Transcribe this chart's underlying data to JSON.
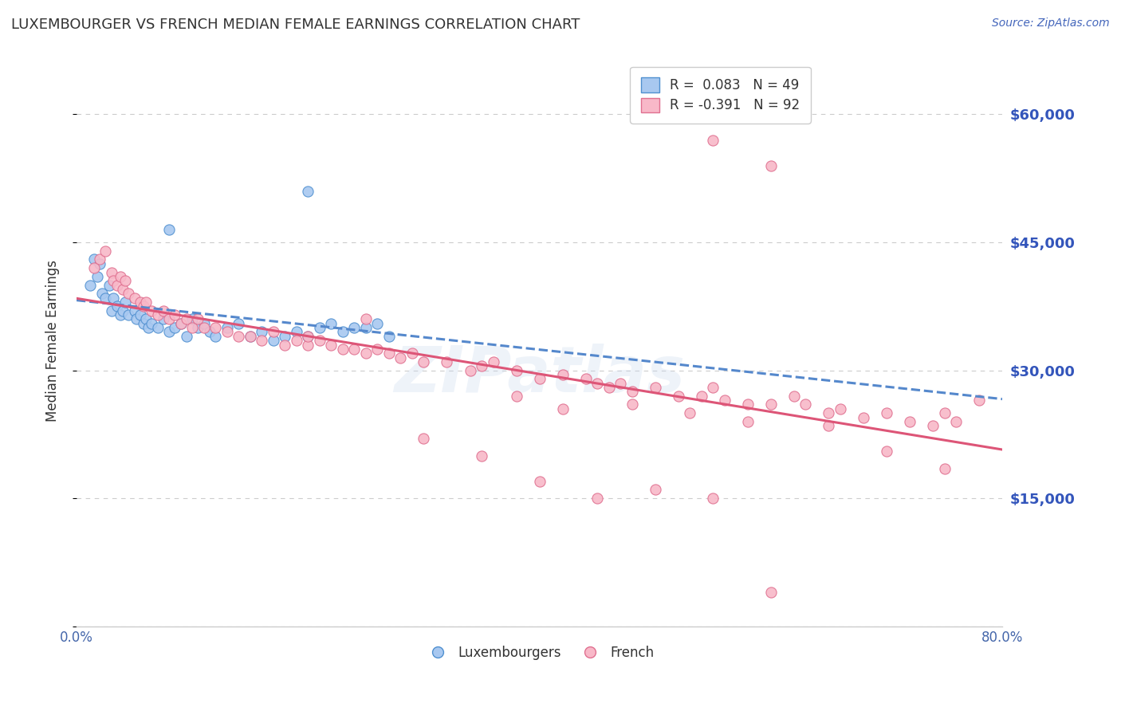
{
  "title": "LUXEMBOURGER VS FRENCH MEDIAN FEMALE EARNINGS CORRELATION CHART",
  "source": "Source: ZipAtlas.com",
  "ylabel": "Median Female Earnings",
  "xlim": [
    0.0,
    80.0
  ],
  "ylim": [
    0,
    67000
  ],
  "yticks": [
    0,
    15000,
    30000,
    45000,
    60000
  ],
  "ytick_labels": [
    "",
    "$15,000",
    "$30,000",
    "$45,000",
    "$60,000"
  ],
  "blue_R": 0.083,
  "blue_N": 49,
  "pink_R": -0.391,
  "pink_N": 92,
  "blue_color": "#a8c8f0",
  "pink_color": "#f8b8c8",
  "blue_edge": "#5090d0",
  "pink_edge": "#e07090",
  "trend_blue_color": "#5588cc",
  "trend_pink_color": "#dd5577",
  "watermark": "ZIPatlas",
  "legend_blue_label": "Luxembourgers",
  "legend_pink_label": "French",
  "blue_x": [
    1.2,
    1.5,
    1.8,
    2.0,
    2.2,
    2.5,
    2.8,
    3.0,
    3.2,
    3.5,
    3.8,
    4.0,
    4.2,
    4.5,
    5.0,
    5.2,
    5.5,
    5.8,
    6.0,
    6.2,
    6.5,
    7.0,
    7.5,
    8.0,
    8.5,
    9.0,
    9.5,
    10.0,
    10.5,
    11.0,
    11.5,
    12.0,
    13.0,
    14.0,
    15.0,
    16.0,
    17.0,
    18.0,
    19.0,
    20.0,
    21.0,
    22.0,
    23.0,
    24.0,
    25.0,
    26.0,
    27.0,
    20.0,
    8.0
  ],
  "blue_y": [
    40000,
    43000,
    41000,
    42500,
    39000,
    38500,
    40000,
    37000,
    38500,
    37500,
    36500,
    37000,
    38000,
    36500,
    37000,
    36000,
    36500,
    35500,
    36000,
    35000,
    35500,
    35000,
    36000,
    34500,
    35000,
    35500,
    34000,
    36000,
    35000,
    35500,
    34500,
    34000,
    35000,
    35500,
    34000,
    34500,
    33500,
    34000,
    34500,
    34000,
    35000,
    35500,
    34500,
    35000,
    35000,
    35500,
    34000,
    51000,
    46500
  ],
  "pink_x": [
    1.5,
    2.0,
    2.5,
    3.0,
    3.2,
    3.5,
    3.8,
    4.0,
    4.2,
    4.5,
    5.0,
    5.5,
    5.8,
    6.0,
    6.5,
    7.0,
    7.5,
    8.0,
    8.5,
    9.0,
    9.5,
    10.0,
    10.5,
    11.0,
    12.0,
    13.0,
    14.0,
    15.0,
    16.0,
    17.0,
    18.0,
    19.0,
    20.0,
    21.0,
    22.0,
    23.0,
    24.0,
    25.0,
    26.0,
    27.0,
    28.0,
    29.0,
    30.0,
    32.0,
    34.0,
    35.0,
    36.0,
    38.0,
    40.0,
    42.0,
    44.0,
    45.0,
    46.0,
    47.0,
    48.0,
    50.0,
    52.0,
    54.0,
    55.0,
    56.0,
    58.0,
    60.0,
    62.0,
    63.0,
    65.0,
    66.0,
    68.0,
    70.0,
    72.0,
    74.0,
    75.0,
    76.0,
    78.0,
    30.0,
    35.0,
    40.0,
    45.0,
    50.0,
    55.0,
    60.0,
    65.0,
    70.0,
    75.0,
    20.0,
    25.0,
    55.0,
    60.0,
    42.0,
    38.0,
    48.0,
    53.0,
    58.0
  ],
  "pink_y": [
    42000,
    43000,
    44000,
    41500,
    40500,
    40000,
    41000,
    39500,
    40500,
    39000,
    38500,
    38000,
    37500,
    38000,
    37000,
    36500,
    37000,
    36000,
    36500,
    35500,
    36000,
    35000,
    36000,
    35000,
    35000,
    34500,
    34000,
    34000,
    33500,
    34500,
    33000,
    33500,
    33000,
    33500,
    33000,
    32500,
    32500,
    32000,
    32500,
    32000,
    31500,
    32000,
    31000,
    31000,
    30000,
    30500,
    31000,
    30000,
    29000,
    29500,
    29000,
    28500,
    28000,
    28500,
    27500,
    28000,
    27000,
    27000,
    28000,
    26500,
    26000,
    26000,
    27000,
    26000,
    25000,
    25500,
    24500,
    25000,
    24000,
    23500,
    25000,
    24000,
    26500,
    22000,
    20000,
    17000,
    15000,
    16000,
    15000,
    4000,
    23500,
    20500,
    18500,
    34000,
    36000,
    57000,
    54000,
    25500,
    27000,
    26000,
    25000,
    24000
  ]
}
